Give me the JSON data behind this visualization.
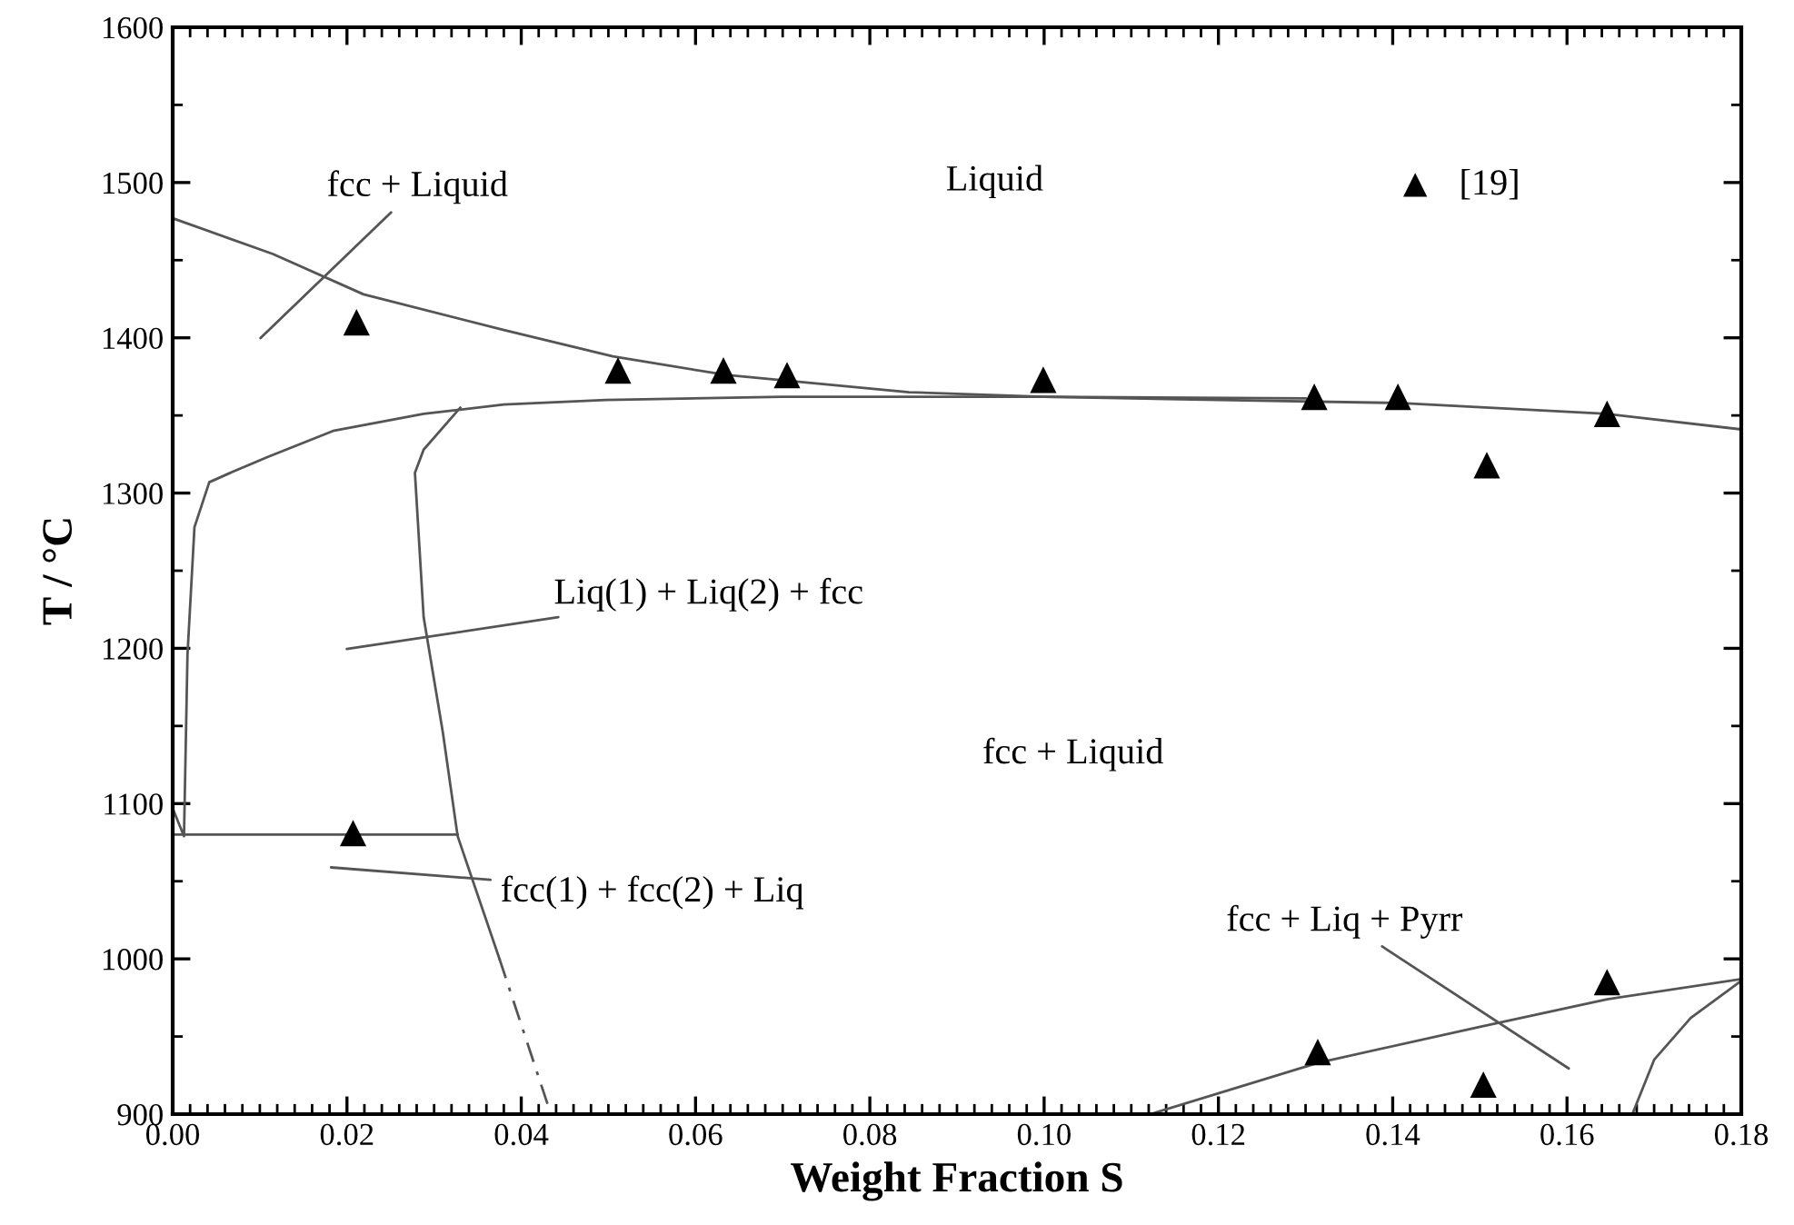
{
  "chart_data": {
    "type": "line",
    "xlabel": "Weight Fraction S",
    "ylabel": "T / °C",
    "xlim": [
      0,
      0.18
    ],
    "xticks": [
      {
        "value": 0,
        "label": "0.00"
      },
      0.02,
      0.04,
      0.06,
      0.08,
      {
        "value": 0.1,
        "label": "0.10"
      },
      0.12,
      0.14,
      0.16,
      0.18
    ],
    "ylim": [
      900,
      1600
    ],
    "yticks": [
      900,
      1000,
      1100,
      1200,
      1300,
      1400,
      1500,
      1600
    ],
    "grid": false,
    "legend": "top right",
    "series": [
      {
        "color": "#555555",
        "line_style": "solid",
        "marker": "none",
        "x": [
          0,
          0.0115,
          0.0219,
          0.038,
          0.0505,
          0.0636,
          0.0845,
          0.1,
          0.12,
          0.1406,
          0.1646,
          0.18
        ],
        "values": [
          1477,
          1454,
          1428,
          1405,
          1388,
          1376,
          1365,
          1362,
          1360,
          1358,
          1351,
          1341
        ]
      },
      {
        "color": "#555555",
        "line_style": "solid",
        "marker": "none",
        "x": [
          0,
          0.0013,
          0.0017,
          0.0025,
          0.0042,
          0.0066,
          0.0108,
          0.0184,
          0.0288,
          0.038,
          0.0497,
          0.07,
          0.1,
          0.13
        ],
        "values": [
          1097,
          1079,
          1196,
          1278,
          1307,
          1313,
          1323,
          1340,
          1351,
          1357,
          1360,
          1362,
          1362,
          1361
        ]
      },
      {
        "color": "#555555",
        "line_style": "solid",
        "marker": "none",
        "x": [
          0.033,
          0.0288,
          0.0278,
          0.0288,
          0.031,
          0.0327,
          0.0375
        ],
        "values": [
          1355,
          1328,
          1313,
          1220,
          1146,
          1079,
          1000
        ]
      },
      {
        "color": "#555555",
        "line_style": "dashed",
        "marker": "none",
        "x": [
          0.0375,
          0.0434
        ],
        "values": [
          1000,
          900
        ]
      },
      {
        "color": "#555555",
        "line_style": "solid",
        "marker": "none",
        "x": [
          0,
          0.0327
        ],
        "values": [
          1080,
          1080
        ]
      },
      {
        "color": "#555555",
        "line_style": "solid",
        "marker": "none",
        "x": [
          0.1122,
          0.1314,
          0.1498,
          0.1646,
          0.18
        ],
        "values": [
          900,
          933,
          956,
          974,
          987
        ]
      },
      {
        "color": "#555555",
        "line_style": "solid",
        "marker": "none",
        "x": [
          0.1675,
          0.17,
          0.1742,
          0.1798
        ],
        "values": [
          900,
          935,
          962,
          985
        ]
      },
      {
        "type": "scatter",
        "name": "[19]",
        "color": "#000000",
        "marker": "triangle",
        "x": [
          0.0211,
          0.0511,
          0.0632,
          0.0705,
          0.0999,
          0.131,
          0.1406,
          0.1508,
          0.1646,
          0.0207,
          0.1314,
          0.1504,
          0.1646
        ],
        "values": [
          1410,
          1379,
          1379,
          1376,
          1373,
          1362,
          1362,
          1318,
          1351,
          1081,
          940,
          919,
          985
        ]
      }
    ],
    "annotations": [
      "fcc + Liquid",
      "Liq(1) + Liq(2) + fcc",
      "fcc(1) + fcc(2) + Liq",
      "fcc + Liq + Pyrr",
      "Liquid",
      "fcc + Liquid"
    ]
  }
}
